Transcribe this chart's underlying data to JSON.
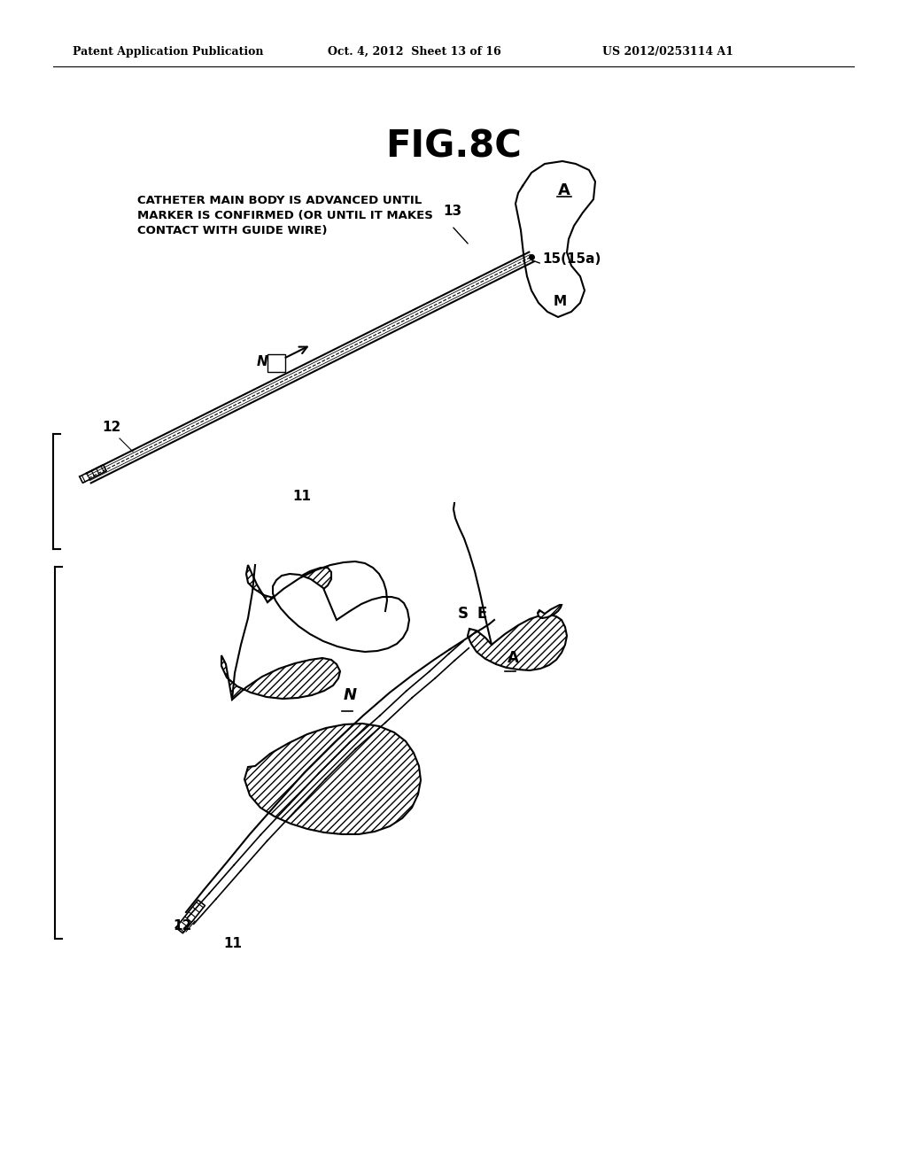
{
  "title": "FIG.8C",
  "header_left": "Patent Application Publication",
  "header_mid": "Oct. 4, 2012  Sheet 13 of 16",
  "header_right": "US 2012/0253114 A1",
  "annotation_text": "CATHETER MAIN BODY IS ADVANCED UNTIL\nMARKER IS CONFIRMED (OR UNTIL IT MAKES\nCONTACT WITH GUIDE WIRE)",
  "bg_color": "#ffffff",
  "line_color": "#000000",
  "hatch_color": "#555555"
}
